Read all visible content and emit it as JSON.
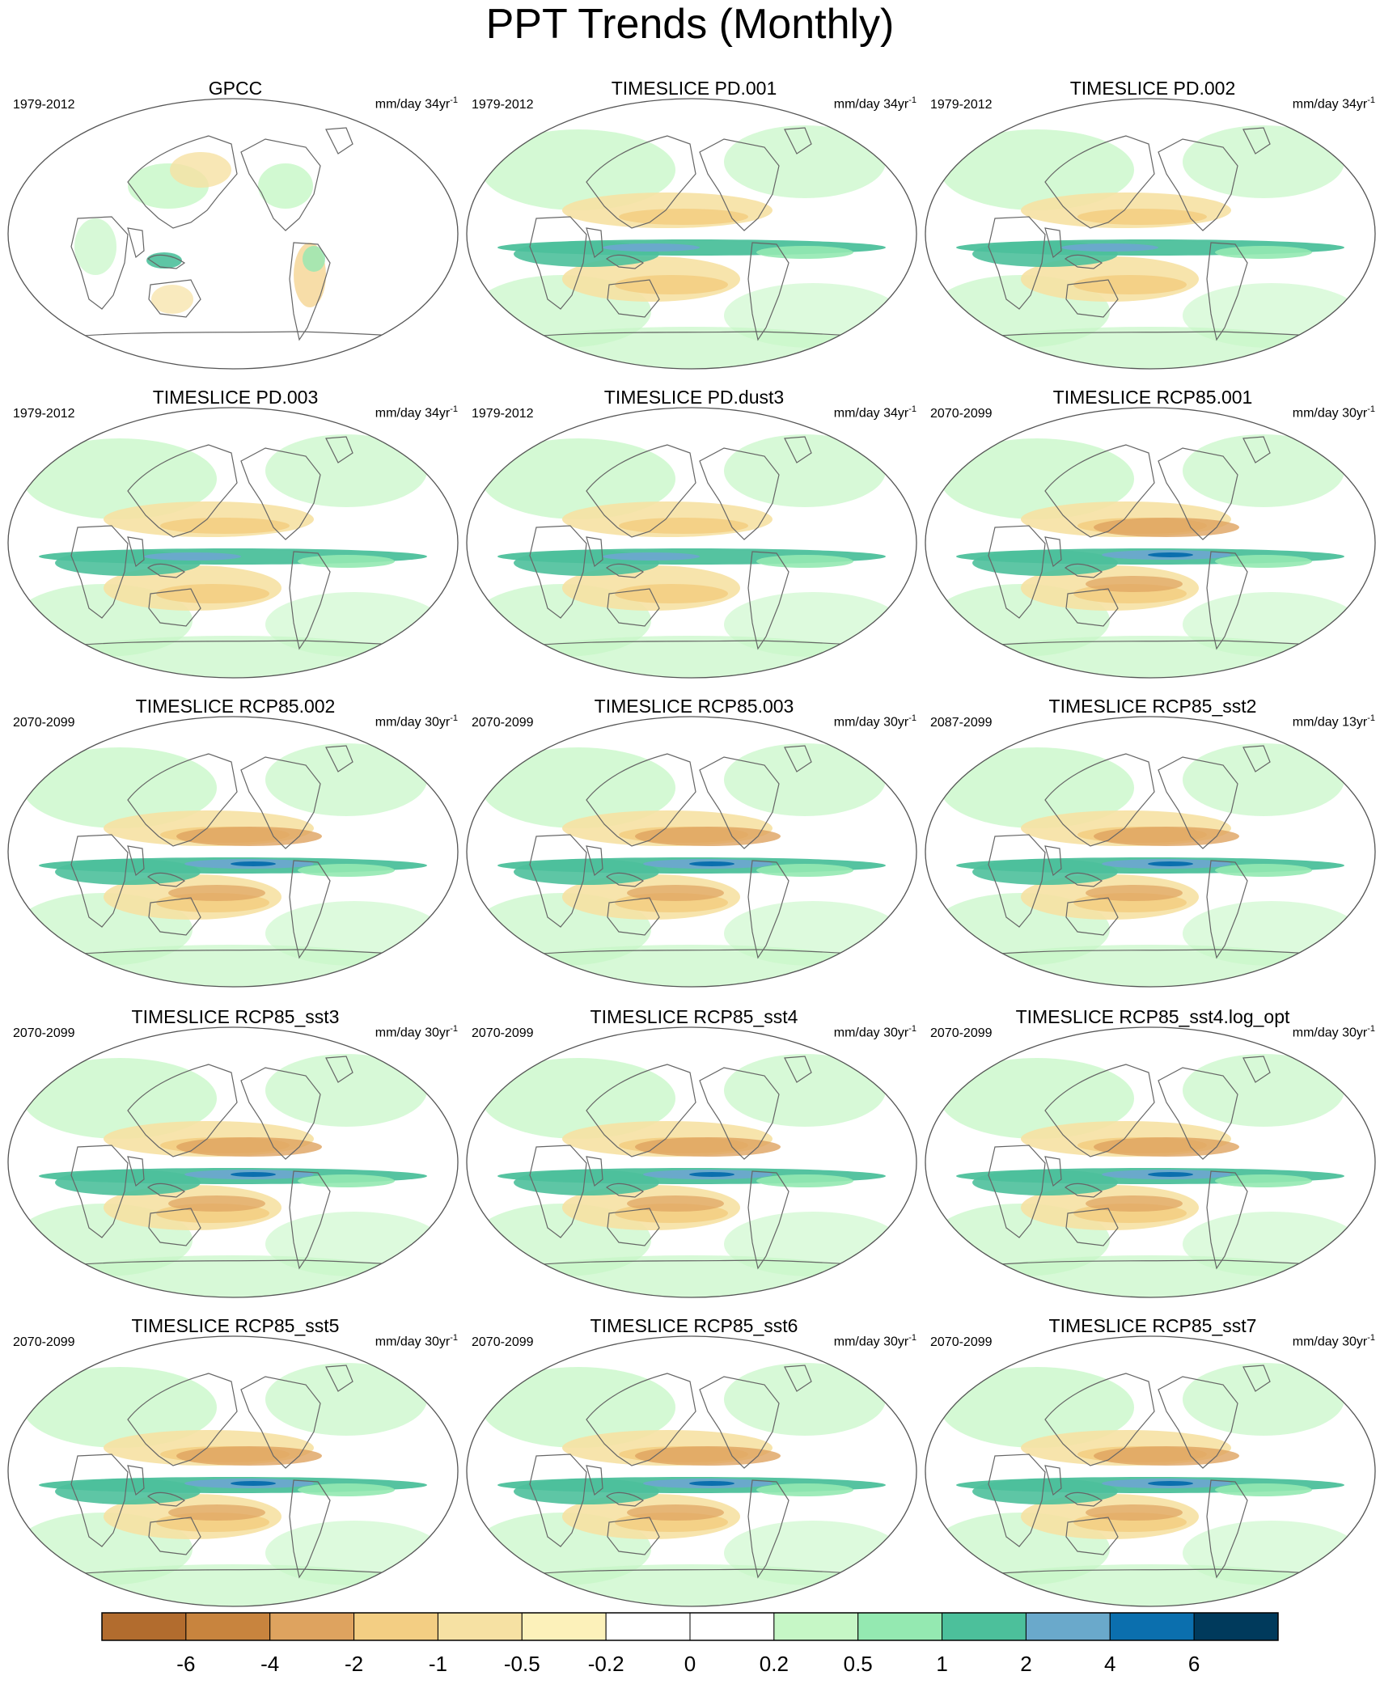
{
  "title": "PPT Trends (Monthly)",
  "panels": [
    {
      "title": "GPCC",
      "period": "1979-2012",
      "units": "mm/day 34yr",
      "units_exp": "-1",
      "pattern": "obs"
    },
    {
      "title": "TIMESLICE PD.001",
      "period": "1979-2012",
      "units": "mm/day 34yr",
      "units_exp": "-1",
      "pattern": "pd"
    },
    {
      "title": "TIMESLICE PD.002",
      "period": "1979-2012",
      "units": "mm/day 34yr",
      "units_exp": "-1",
      "pattern": "pd"
    },
    {
      "title": "TIMESLICE PD.003",
      "period": "1979-2012",
      "units": "mm/day 34yr",
      "units_exp": "-1",
      "pattern": "pd"
    },
    {
      "title": "TIMESLICE PD.dust3",
      "period": "1979-2012",
      "units": "mm/day 34yr",
      "units_exp": "-1",
      "pattern": "pd"
    },
    {
      "title": "TIMESLICE RCP85.001",
      "period": "2070-2099",
      "units": "mm/day 30yr",
      "units_exp": "-1",
      "pattern": "rcp"
    },
    {
      "title": "TIMESLICE RCP85.002",
      "period": "2070-2099",
      "units": "mm/day 30yr",
      "units_exp": "-1",
      "pattern": "rcp"
    },
    {
      "title": "TIMESLICE RCP85.003",
      "period": "2070-2099",
      "units": "mm/day 30yr",
      "units_exp": "-1",
      "pattern": "rcp"
    },
    {
      "title": "TIMESLICE RCP85_sst2",
      "period": "2087-2099",
      "units": "mm/day 13yr",
      "units_exp": "-1",
      "pattern": "rcp"
    },
    {
      "title": "TIMESLICE RCP85_sst3",
      "period": "2070-2099",
      "units": "mm/day 30yr",
      "units_exp": "-1",
      "pattern": "rcp"
    },
    {
      "title": "TIMESLICE RCP85_sst4",
      "period": "2070-2099",
      "units": "mm/day 30yr",
      "units_exp": "-1",
      "pattern": "rcp"
    },
    {
      "title": "TIMESLICE RCP85_sst4.log_opt",
      "period": "2070-2099",
      "units": "mm/day 30yr",
      "units_exp": "-1",
      "pattern": "rcp"
    },
    {
      "title": "TIMESLICE RCP85_sst5",
      "period": "2070-2099",
      "units": "mm/day 30yr",
      "units_exp": "-1",
      "pattern": "rcp"
    },
    {
      "title": "TIMESLICE RCP85_sst6",
      "period": "2070-2099",
      "units": "mm/day 30yr",
      "units_exp": "-1",
      "pattern": "rcp"
    },
    {
      "title": "TIMESLICE RCP85_sst7",
      "period": "2070-2099",
      "units": "mm/day 30yr",
      "units_exp": "-1",
      "pattern": "rcp"
    }
  ],
  "colorbar": {
    "colors": [
      "#b26c2e",
      "#c8843e",
      "#dea35f",
      "#f3ce83",
      "#f6e1a3",
      "#fcf1ba",
      "#ffffff",
      "#ffffff",
      "#c6f7c6",
      "#94e9b1",
      "#4cc09b",
      "#6aa9cb",
      "#0b6fae",
      "#003a5c"
    ],
    "labels": [
      "-6",
      "-4",
      "-2",
      "-1",
      "-0.5",
      "-0.2",
      "0",
      "0.2",
      "0.5",
      "1",
      "2",
      "4",
      "6"
    ]
  }
}
